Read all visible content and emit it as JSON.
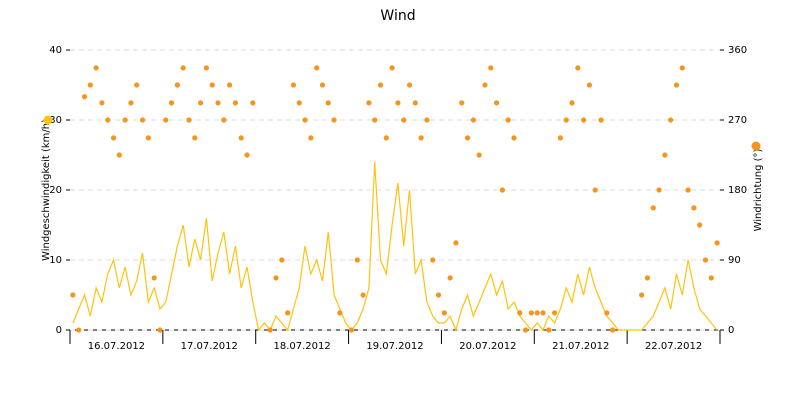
{
  "chart_data": {
    "type": "line",
    "title": "Wind",
    "ylabel": "Windgeschwindigkeit (km/h)",
    "y2label": "Windrichtung (°)",
    "categories": [
      "16.07.2012",
      "17.07.2012",
      "18.07.2012",
      "19.07.2012",
      "20.07.2012",
      "21.07.2012",
      "22.07.2012"
    ],
    "ylim": [
      0,
      40
    ],
    "yticks": [
      0,
      10,
      20,
      30,
      40
    ],
    "y2lim": [
      0,
      360
    ],
    "y2ticks": [
      0,
      90,
      180,
      270,
      360
    ],
    "grid": true,
    "series": [
      {
        "name": "Windgeschwindigkeit (km/h)",
        "type": "line",
        "color": "#ffc20e",
        "values": [
          [
            1,
            3,
            5,
            2,
            6,
            4,
            8,
            10,
            6,
            9,
            5,
            7,
            11,
            4,
            6,
            3
          ],
          [
            4,
            8,
            12,
            15,
            9,
            13,
            10,
            16,
            7,
            11,
            14,
            8,
            12,
            6,
            9,
            4
          ],
          [
            0,
            1,
            0,
            2,
            1,
            0,
            3,
            6,
            12,
            8,
            10,
            7,
            14,
            5,
            3,
            1
          ],
          [
            0,
            1,
            3,
            6,
            24,
            10,
            8,
            15,
            21,
            12,
            20,
            8,
            10,
            4,
            2,
            1
          ],
          [
            1,
            2,
            0,
            3,
            5,
            2,
            4,
            6,
            8,
            5,
            7,
            3,
            4,
            2,
            1,
            0
          ],
          [
            1,
            0,
            2,
            1,
            3,
            6,
            4,
            8,
            5,
            9,
            6,
            4,
            2,
            1,
            0,
            0
          ],
          [
            0,
            0,
            0,
            1,
            2,
            4,
            6,
            3,
            8,
            5,
            10,
            6,
            3,
            2,
            1,
            0
          ]
        ]
      },
      {
        "name": "Windrichtung (°)",
        "type": "scatter",
        "axis": "y2",
        "color": "#f7941d",
        "values": [
          [
            45,
            0,
            300,
            315,
            337,
            292,
            270,
            247,
            225,
            270,
            292,
            315,
            270,
            247,
            67,
            0
          ],
          [
            270,
            292,
            315,
            337,
            270,
            247,
            292,
            337,
            315,
            292,
            270,
            315,
            292,
            247,
            225,
            292
          ],
          [
            null,
            null,
            0,
            67,
            90,
            22,
            315,
            292,
            270,
            247,
            337,
            315,
            292,
            270,
            22,
            null
          ],
          [
            0,
            90,
            45,
            292,
            270,
            315,
            247,
            337,
            292,
            270,
            315,
            292,
            247,
            270,
            90,
            45
          ],
          [
            22,
            67,
            112,
            292,
            247,
            270,
            225,
            315,
            337,
            292,
            180,
            270,
            247,
            22,
            0,
            22
          ],
          [
            22,
            22,
            0,
            22,
            247,
            270,
            292,
            337,
            270,
            315,
            180,
            270,
            22,
            0,
            null,
            null
          ],
          [
            null,
            null,
            45,
            67,
            157,
            180,
            225,
            270,
            315,
            337,
            180,
            157,
            135,
            90,
            67,
            112
          ]
        ]
      }
    ]
  }
}
